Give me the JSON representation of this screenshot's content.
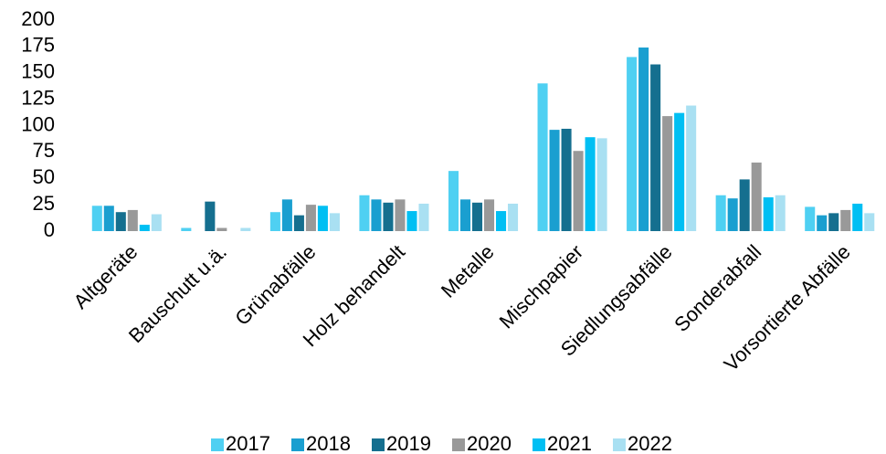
{
  "chart_data": {
    "type": "bar",
    "categories": [
      "Altgeräte",
      "Bauschutt u.ä.",
      "Grünabfälle",
      "Holz behandelt",
      "Metalle",
      "Mischpapier",
      "Siedlungsabfälle",
      "Sonderabfall",
      "Vorsortierte Abfälle"
    ],
    "series": [
      {
        "name": "2017",
        "color": "#4fd0f2",
        "values": [
          24,
          3,
          18,
          34,
          57,
          140,
          165,
          34,
          23
        ]
      },
      {
        "name": "2018",
        "color": "#1a9fd0",
        "values": [
          24,
          0,
          30,
          30,
          30,
          96,
          174,
          31,
          15
        ]
      },
      {
        "name": "2019",
        "color": "#156f8f",
        "values": [
          18,
          28,
          15,
          27,
          27,
          97,
          158,
          49,
          17
        ]
      },
      {
        "name": "2020",
        "color": "#999999",
        "values": [
          20,
          3,
          25,
          30,
          30,
          76,
          109,
          65,
          20
        ]
      },
      {
        "name": "2021",
        "color": "#00bff3",
        "values": [
          6,
          0,
          24,
          19,
          19,
          89,
          112,
          32,
          26
        ]
      },
      {
        "name": "2022",
        "color": "#a9e0f2",
        "values": [
          16,
          3,
          17,
          26,
          26,
          88,
          119,
          34,
          17
        ]
      }
    ],
    "ylim": [
      0,
      200
    ],
    "yticks": [
      0,
      25,
      50,
      75,
      100,
      125,
      150,
      175,
      200
    ],
    "grid": false,
    "legend": "bottom"
  }
}
